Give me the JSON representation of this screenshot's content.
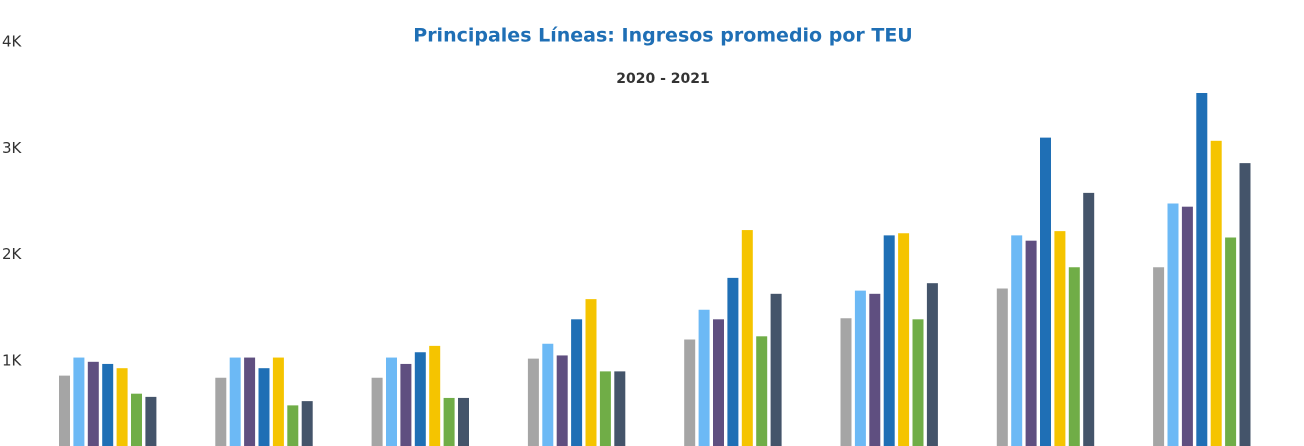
{
  "chart_data": {
    "type": "bar",
    "title": "Principales Líneas: Ingresos promedio por TEU",
    "subtitle": "2020 - 2021",
    "categories": [
      null,
      null,
      null,
      null,
      null,
      null,
      null,
      null
    ],
    "series": [
      {
        "color": "#a5a5a5",
        "values": [
          860,
          840,
          840,
          1020,
          1200,
          1400,
          1680,
          1880
        ]
      },
      {
        "color": "#6cb9f5",
        "values": [
          1030,
          1030,
          1030,
          1160,
          1480,
          1660,
          2180,
          2480
        ]
      },
      {
        "color": "#5f4f80",
        "values": [
          990,
          1030,
          970,
          1050,
          1390,
          1630,
          2130,
          2450
        ]
      },
      {
        "color": "#1f6fb5",
        "values": [
          970,
          930,
          1080,
          1390,
          1780,
          2180,
          3100,
          3520
        ]
      },
      {
        "color": "#f5c400",
        "values": [
          930,
          1030,
          1140,
          1580,
          2230,
          2200,
          2220,
          3070
        ]
      },
      {
        "color": "#70ad47",
        "values": [
          690,
          580,
          650,
          900,
          1230,
          1390,
          1880,
          2160
        ]
      },
      {
        "color": "#44546a",
        "values": [
          660,
          620,
          650,
          900,
          1630,
          1730,
          2580,
          2860
        ]
      }
    ],
    "ylim": [
      0,
      4000
    ],
    "yticks": [
      {
        "value": 1000,
        "label": "1K"
      },
      {
        "value": 2000,
        "label": "2K"
      },
      {
        "value": 3000,
        "label": "3K"
      },
      {
        "value": 4000,
        "label": "4K"
      }
    ],
    "grid": false
  }
}
